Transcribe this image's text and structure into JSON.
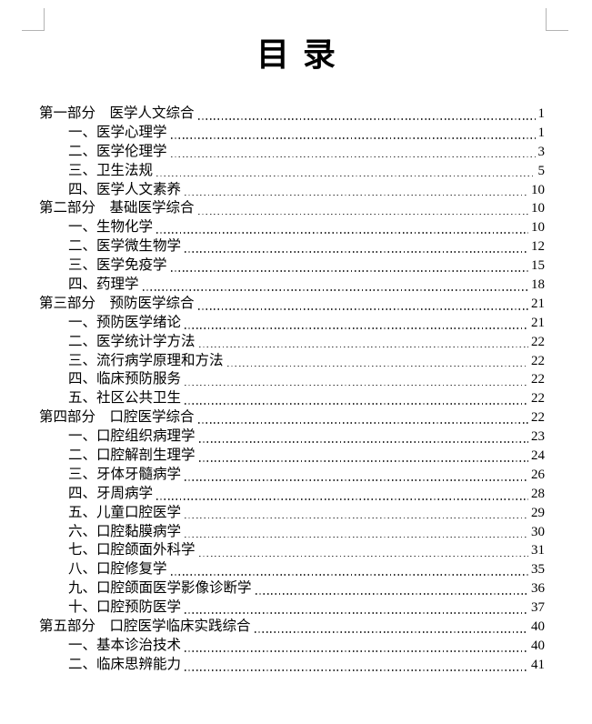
{
  "doc": {
    "title": "目录"
  },
  "colors": {
    "text": "#000000",
    "dot_leader": "#333333",
    "crop_mark": "#b3b3b3",
    "background": "#ffffff"
  },
  "toc": {
    "entries": [
      {
        "level": 1,
        "label": "第一部分　医学人文综合",
        "page": "1"
      },
      {
        "level": 2,
        "label": "一、医学心理学",
        "page": "1"
      },
      {
        "level": 2,
        "label": "二、医学伦理学",
        "page": "3"
      },
      {
        "level": 2,
        "label": "三、卫生法规",
        "page": "5"
      },
      {
        "level": 2,
        "label": "四、医学人文素养",
        "page": "10"
      },
      {
        "level": 1,
        "label": "第二部分　基础医学综合",
        "page": "10"
      },
      {
        "level": 2,
        "label": "一、生物化学",
        "page": "10"
      },
      {
        "level": 2,
        "label": "二、医学微生物学",
        "page": "12"
      },
      {
        "level": 2,
        "label": "三、医学免疫学",
        "page": "15"
      },
      {
        "level": 2,
        "label": "四、药理学",
        "page": "18"
      },
      {
        "level": 1,
        "label": "第三部分　预防医学综合",
        "page": "21"
      },
      {
        "level": 2,
        "label": "一、预防医学绪论",
        "page": "21"
      },
      {
        "level": 2,
        "label": "二、医学统计学方法",
        "page": "22"
      },
      {
        "level": 2,
        "label": "三、流行病学原理和方法",
        "page": "22"
      },
      {
        "level": 2,
        "label": "四、临床预防服务",
        "page": "22"
      },
      {
        "level": 2,
        "label": "五、社区公共卫生",
        "page": "22"
      },
      {
        "level": 1,
        "label": "第四部分　口腔医学综合",
        "page": "22"
      },
      {
        "level": 2,
        "label": "一、口腔组织病理学",
        "page": "23"
      },
      {
        "level": 2,
        "label": "二、口腔解剖生理学",
        "page": "24"
      },
      {
        "level": 2,
        "label": "三、牙体牙髓病学",
        "page": "26"
      },
      {
        "level": 2,
        "label": "四、牙周病学",
        "page": "28"
      },
      {
        "level": 2,
        "label": "五、儿童口腔医学",
        "page": "29"
      },
      {
        "level": 2,
        "label": "六、口腔黏膜病学",
        "page": "30"
      },
      {
        "level": 2,
        "label": "七、口腔颌面外科学",
        "page": "31"
      },
      {
        "level": 2,
        "label": "八、口腔修复学",
        "page": "35"
      },
      {
        "level": 2,
        "label": "九、口腔颌面医学影像诊断学",
        "page": "36"
      },
      {
        "level": 2,
        "label": "十、口腔预防医学",
        "page": "37"
      },
      {
        "level": 1,
        "label": "第五部分　口腔医学临床实践综合",
        "page": "40"
      },
      {
        "level": 2,
        "label": "一、基本诊治技术",
        "page": "40"
      },
      {
        "level": 2,
        "label": "二、临床思辨能力",
        "page": "41"
      }
    ]
  }
}
